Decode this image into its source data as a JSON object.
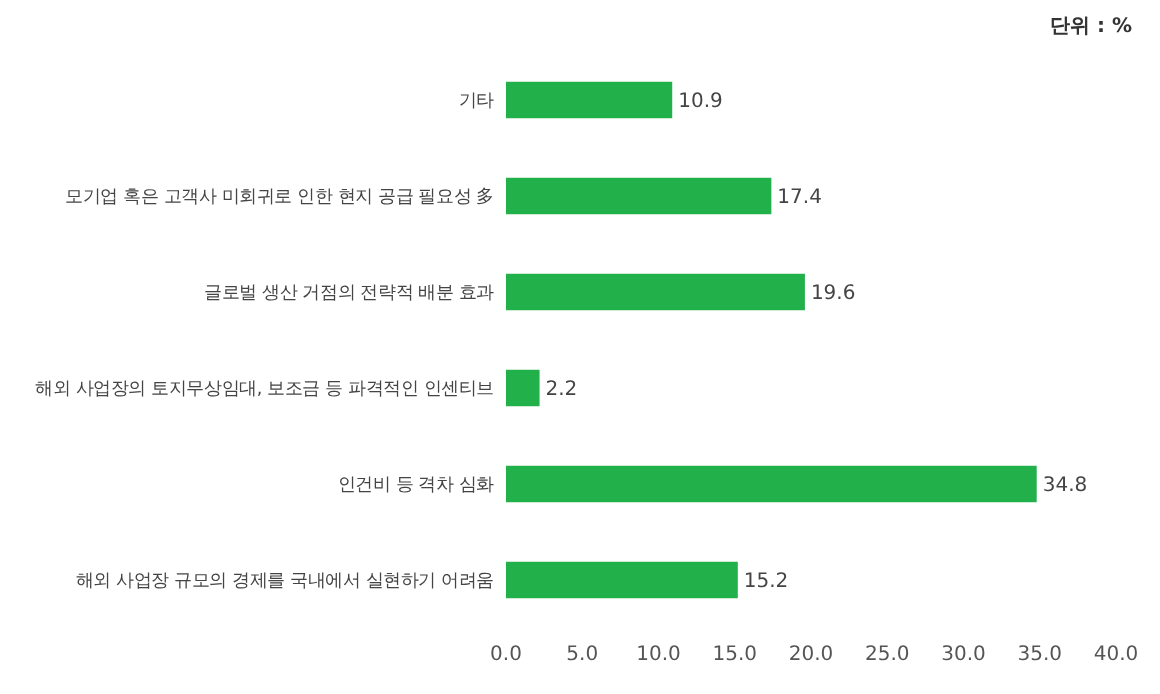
{
  "chart_data": {
    "type": "bar",
    "orientation": "horizontal",
    "categories": [
      "기타",
      "모기업 혹은 고객사 미회귀로 인한 현지 공급 필요성 多",
      "글로벌 생산 거점의 전략적 배분 효과",
      "해외 사업장의 토지무상임대, 보조금 등 파격적인 인센티브",
      "인건비 등 격차 심화",
      "해외 사업장 규모의 경제를 국내에서 실현하기 어려움"
    ],
    "values": [
      10.9,
      17.4,
      19.6,
      2.2,
      34.8,
      15.2
    ],
    "color": "#22b04b",
    "xlim": [
      0,
      40
    ],
    "xticks": [
      {
        "value": 0,
        "label": "0.0"
      },
      {
        "value": 5,
        "label": "5.0"
      },
      {
        "value": 10,
        "label": "10.0"
      },
      {
        "value": 15,
        "label": "15.0"
      },
      {
        "value": 20,
        "label": "20.0"
      },
      {
        "value": 25,
        "label": "25.0"
      },
      {
        "value": 30,
        "label": "30.0"
      },
      {
        "value": 35,
        "label": "35.0"
      },
      {
        "value": 40,
        "label": "40.0"
      }
    ],
    "data_labels": true,
    "grid": false,
    "annotations": [
      "단위 : %"
    ]
  }
}
